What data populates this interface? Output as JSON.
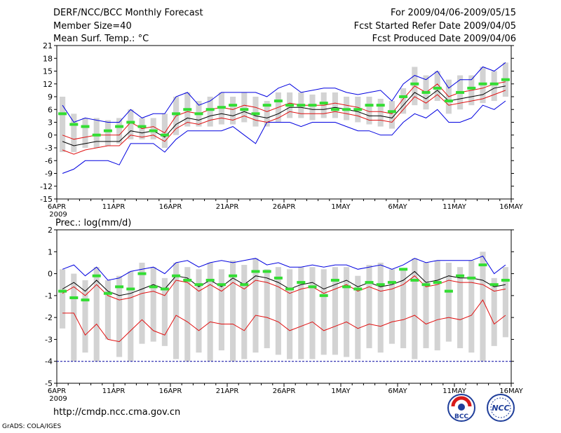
{
  "header": {
    "title": "DERF/NCC/BCC Monthly Forecast",
    "member_size": "Member Size=40",
    "variable_temp": "Mean Surf. Temp.: °C",
    "forecast_period": "For 2009/04/06-2009/05/15",
    "fcst_started": "Fcst Started Refer Date 2009/04/05",
    "fcst_produced": "Fcst Produced Date 2009/04/06"
  },
  "footer": {
    "url": "http://cmdp.ncc.cma.gov.cn",
    "grads_credit": "GrADS: COLA/IGES",
    "logo_bcc_text": "BCC",
    "logo_ncc_text": "NCC"
  },
  "colors": {
    "ensemble_box": "#d3d3d3",
    "green_obs": "#33dd33",
    "mean_line": "#000000",
    "red_line": "#e01010",
    "blue_line": "#0000e0"
  },
  "chart_data": [
    {
      "type": "box-ensemble-line",
      "title": "Mean Surf. Temp.: °C",
      "x_labels": [
        "6APR",
        "11APR",
        "16APR",
        "21APR",
        "26APR",
        "1MAY",
        "6MAY",
        "11MAY",
        "16MAY"
      ],
      "x_sublabel": "2009",
      "x_count": 40,
      "ylim": [
        -15,
        21
      ],
      "yticks": [
        -15,
        -12,
        -9,
        -6,
        -3,
        0,
        3,
        6,
        9,
        12,
        15,
        18,
        21
      ],
      "series": [
        {
          "name": "mean",
          "values": [
            -1.5,
            -2.5,
            -2,
            -1.5,
            -1.5,
            -1.5,
            1,
            0.5,
            1,
            -0.5,
            2.5,
            4,
            3.5,
            4.5,
            5,
            4.5,
            5.5,
            4.5,
            4,
            5,
            6.5,
            6.5,
            6,
            6,
            6.5,
            6,
            5.5,
            4.5,
            4.5,
            4,
            7,
            10,
            8.5,
            10.5,
            8,
            8.5,
            9,
            9.5,
            11,
            11.5
          ]
        },
        {
          "name": "upper_red",
          "values": [
            0,
            -1,
            -0.5,
            0,
            0,
            0,
            3,
            1.5,
            2,
            0.5,
            4.5,
            5.5,
            5,
            6,
            6.5,
            6,
            7,
            6.5,
            5.5,
            6.5,
            7.5,
            7,
            7,
            7,
            7.5,
            7,
            6.5,
            5.5,
            5.5,
            5,
            8.5,
            11.5,
            10,
            12,
            9,
            10,
            10.5,
            11,
            12,
            12.5
          ]
        },
        {
          "name": "lower_red",
          "values": [
            -3.5,
            -4.5,
            -3.5,
            -3,
            -2.5,
            -2.5,
            0,
            -0.5,
            0,
            -1.5,
            1.5,
            3,
            2.5,
            3.5,
            4,
            3.5,
            4.5,
            3.5,
            3,
            4,
            5.5,
            5,
            5,
            5,
            5.5,
            5,
            4.5,
            3.5,
            3.5,
            3,
            6,
            9,
            7.5,
            9.5,
            7,
            7.5,
            8,
            8.5,
            9.5,
            10.5
          ]
        },
        {
          "name": "max_blue",
          "values": [
            7,
            3,
            4,
            3.5,
            3,
            3,
            6,
            4,
            5,
            5,
            9,
            10,
            7,
            8,
            10,
            10,
            10,
            10,
            9,
            11,
            12,
            10,
            10.5,
            11,
            11,
            10,
            9.5,
            10,
            10.5,
            8,
            12,
            14,
            13,
            15,
            11,
            13,
            13,
            16,
            15,
            17
          ]
        },
        {
          "name": "min_blue",
          "values": [
            -9,
            -8,
            -6,
            -6,
            -6,
            -7,
            -2,
            -2,
            -2,
            -4,
            -1,
            1,
            1,
            1,
            1,
            2,
            0,
            -2,
            3,
            3,
            3,
            2,
            3,
            3,
            3,
            2,
            1,
            1,
            0,
            0,
            3,
            5,
            4,
            6,
            3,
            3,
            4,
            7,
            6,
            8
          ]
        },
        {
          "name": "green_obs",
          "values": [
            5,
            2.5,
            2,
            0,
            1,
            2,
            3,
            2,
            1,
            0,
            5,
            6,
            5,
            6,
            6.5,
            7,
            6,
            5,
            7,
            8,
            7,
            7,
            7,
            7.5,
            6,
            6,
            6,
            7,
            7,
            5.5,
            9,
            12,
            10,
            11,
            8,
            10,
            11,
            12,
            12,
            13
          ]
        },
        {
          "name": "box_low",
          "values": [
            -4,
            -4,
            -3,
            -3,
            -2.5,
            -2,
            -1,
            -1,
            -1,
            -3,
            0,
            2,
            2,
            2,
            2.5,
            2.5,
            3,
            2,
            2,
            3,
            4,
            4,
            3.5,
            4,
            4,
            3.5,
            3,
            2.5,
            2,
            1.5,
            5,
            7,
            6,
            8,
            5,
            6,
            7,
            7.5,
            8,
            9
          ]
        },
        {
          "name": "box_high",
          "values": [
            9,
            5,
            4,
            4,
            3.5,
            4,
            6,
            4,
            4,
            5,
            9,
            10,
            8,
            9,
            10,
            9,
            10,
            9,
            8,
            10,
            10,
            10,
            9.5,
            10,
            10,
            9,
            9,
            9,
            8.5,
            8,
            11,
            16,
            14,
            15,
            13,
            14,
            14,
            16,
            15,
            17
          ]
        }
      ]
    },
    {
      "type": "box-ensemble-line",
      "title": "Prec.: log(mm/d)",
      "x_labels": [
        "6APR",
        "11APR",
        "16APR",
        "21APR",
        "26APR",
        "1MAY",
        "6MAY",
        "11MAY",
        "16MAY"
      ],
      "x_sublabel": "2009",
      "x_count": 40,
      "ylim": [
        -5,
        2
      ],
      "yticks": [
        -5,
        -4,
        -3,
        -2,
        -1,
        0,
        1,
        2
      ],
      "baseline": -4,
      "series": [
        {
          "name": "mean",
          "values": [
            -0.7,
            -0.4,
            -0.8,
            -0.3,
            -0.8,
            -1.0,
            -0.9,
            -0.7,
            -0.5,
            -0.7,
            -0.1,
            -0.2,
            -0.6,
            -0.3,
            -0.6,
            -0.2,
            -0.5,
            -0.1,
            -0.2,
            -0.4,
            -0.7,
            -0.5,
            -0.4,
            -0.7,
            -0.5,
            -0.3,
            -0.6,
            -0.4,
            -0.6,
            -0.5,
            -0.3,
            0.1,
            -0.4,
            -0.3,
            -0.1,
            -0.2,
            -0.2,
            -0.3,
            -0.6,
            -0.5
          ]
        },
        {
          "name": "upper_red",
          "values": [
            -0.9,
            -0.6,
            -1.0,
            -0.5,
            -1.0,
            -1.2,
            -1.1,
            -0.9,
            -0.8,
            -1.0,
            -0.3,
            -0.4,
            -0.8,
            -0.5,
            -0.8,
            -0.4,
            -0.7,
            -0.3,
            -0.4,
            -0.6,
            -0.9,
            -0.7,
            -0.6,
            -0.9,
            -0.7,
            -0.5,
            -0.8,
            -0.6,
            -0.8,
            -0.7,
            -0.5,
            -0.1,
            -0.6,
            -0.5,
            -0.3,
            -0.4,
            -0.4,
            -0.5,
            -0.8,
            -0.7
          ]
        },
        {
          "name": "lower_red",
          "values": [
            -1.8,
            -1.8,
            -2.8,
            -2.3,
            -3.0,
            -3.1,
            -2.6,
            -2.1,
            -2.6,
            -2.8,
            -1.9,
            -2.2,
            -2.6,
            -2.2,
            -2.3,
            -2.3,
            -2.6,
            -1.9,
            -2.0,
            -2.2,
            -2.6,
            -2.4,
            -2.2,
            -2.6,
            -2.4,
            -2.2,
            -2.5,
            -2.3,
            -2.4,
            -2.2,
            -2.1,
            -1.9,
            -2.3,
            -2.1,
            -2.0,
            -2.1,
            -1.9,
            -1.2,
            -2.3,
            -1.9
          ]
        },
        {
          "name": "max_blue",
          "values": [
            0.2,
            0.4,
            -0.1,
            0.3,
            -0.3,
            -0.2,
            0.1,
            0.2,
            0.3,
            0.0,
            0.5,
            0.6,
            0.3,
            0.5,
            0.6,
            0.5,
            0.6,
            0.7,
            0.4,
            0.5,
            0.3,
            0.3,
            0.4,
            0.3,
            0.4,
            0.4,
            0.2,
            0.3,
            0.4,
            0.2,
            0.4,
            0.7,
            0.5,
            0.6,
            0.6,
            0.6,
            0.6,
            0.8,
            0.0,
            0.4
          ]
        },
        {
          "name": "green_obs",
          "values": [
            -0.8,
            -1.1,
            -1.2,
            -0.1,
            -0.9,
            -0.6,
            -0.7,
            0.0,
            -0.6,
            -0.7,
            -0.1,
            -0.3,
            -0.5,
            -0.3,
            -0.5,
            -0.1,
            -0.5,
            0.1,
            0.1,
            -0.2,
            -0.7,
            -0.4,
            -0.6,
            -1.0,
            -0.3,
            -0.6,
            -0.7,
            -0.4,
            -0.5,
            -0.4,
            0.2,
            -0.3,
            -0.5,
            -0.4,
            -0.8,
            -0.1,
            -0.2,
            0.4,
            -0.5,
            -0.3
          ]
        },
        {
          "name": "box_low",
          "values": [
            -2.5,
            -4.0,
            -3.6,
            -4.0,
            -3.0,
            -3.8,
            -4.0,
            -3.2,
            -3.1,
            -3.3,
            -3.9,
            -4.0,
            -3.6,
            -4.0,
            -3.5,
            -4.0,
            -3.9,
            -3.6,
            -3.4,
            -3.7,
            -3.9,
            -3.9,
            -3.9,
            -3.7,
            -3.7,
            -3.8,
            -3.9,
            -3.4,
            -3.6,
            -3.2,
            -3.4,
            -3.9,
            -3.4,
            -3.5,
            -3.1,
            -3.4,
            -3.6,
            -4.0,
            -3.3,
            -2.9
          ]
        },
        {
          "name": "box_high",
          "values": [
            0.2,
            0.0,
            -0.3,
            0.3,
            -0.3,
            -0.1,
            0.1,
            0.5,
            0.3,
            -0.2,
            0.5,
            0.3,
            0.2,
            0.5,
            0.2,
            0.6,
            0.4,
            0.7,
            0.2,
            0.3,
            0.2,
            0.3,
            0.3,
            0.2,
            0.3,
            0.3,
            -0.1,
            0.4,
            0.5,
            0.2,
            0.2,
            0.7,
            0.5,
            0.6,
            0.5,
            0.3,
            0.6,
            1.0,
            -0.2,
            0.3
          ]
        }
      ]
    }
  ]
}
